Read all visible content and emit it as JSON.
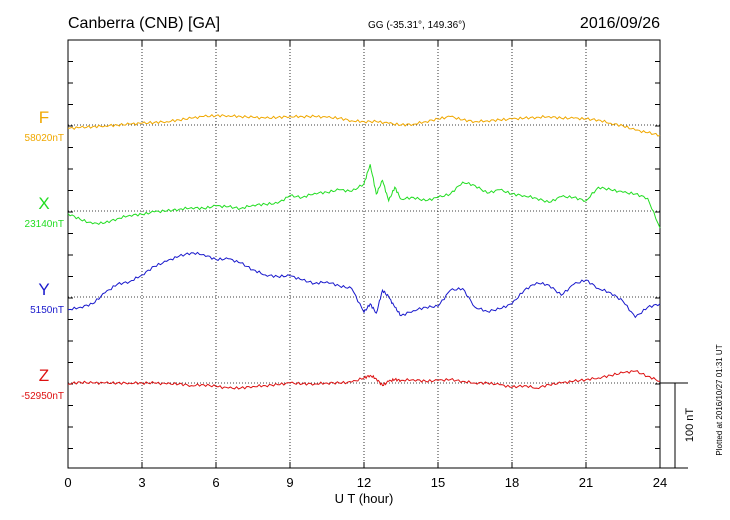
{
  "header": {
    "station": "Canberra (CNB)  [GA]",
    "coords": "GG (-35.31°, 149.36°)",
    "date": "2016/09/26"
  },
  "xaxis": {
    "label": "U T (hour)",
    "ticks": [
      "0",
      "3",
      "6",
      "9",
      "12",
      "15",
      "18",
      "21",
      "24"
    ]
  },
  "scale_label": "100 nT",
  "footer_note": "Plotted at 2016/10/27 01:31  UT",
  "colors": {
    "F": "#f0a800",
    "X": "#22dd22",
    "Y": "#1a1acc",
    "Z": "#dd1111",
    "grid": "#000000"
  },
  "chart_data": {
    "type": "line",
    "x_range": [
      0,
      24
    ],
    "grid": true,
    "series": [
      {
        "name": "F",
        "baseline_label": "58020nT",
        "baseline": 58020,
        "x": [
          0,
          0.5,
          1,
          1.5,
          2,
          2.5,
          3,
          3.5,
          4,
          4.5,
          5,
          5.5,
          6,
          6.5,
          7,
          7.5,
          8,
          8.5,
          9,
          9.5,
          10,
          10.5,
          11,
          11.5,
          12,
          12.5,
          13,
          13.5,
          14,
          14.5,
          15,
          15.5,
          16,
          16.5,
          17,
          17.5,
          18,
          18.5,
          19,
          19.5,
          20,
          20.5,
          21,
          21.5,
          22,
          22.5,
          23,
          23.5,
          24
        ],
        "y": [
          58016,
          58017,
          58018,
          58019,
          58020,
          58021,
          58022,
          58023,
          58024,
          58026,
          58028,
          58030,
          58031,
          58031,
          58030,
          58029,
          58028,
          58029,
          58030,
          58030,
          58030,
          58029,
          58028,
          58025,
          58024,
          58024,
          58022,
          58020,
          58021,
          58024,
          58027,
          58030,
          58026,
          58024,
          58025,
          58026,
          58027,
          58028,
          58029,
          58030,
          58028,
          58028,
          58027,
          58026,
          58022,
          58019,
          58014,
          58011,
          58008
        ]
      },
      {
        "name": "X",
        "baseline_label": "23140nT",
        "baseline": 23140,
        "x": [
          0,
          0.5,
          1,
          1.5,
          2,
          2.5,
          3,
          3.5,
          4,
          4.5,
          5,
          5.5,
          6,
          6.5,
          7,
          7.5,
          8,
          8.5,
          9,
          9.5,
          10,
          10.5,
          11,
          11.5,
          12,
          12.25,
          12.5,
          12.75,
          13,
          13.25,
          13.5,
          14,
          14.5,
          15,
          15.5,
          16,
          16.5,
          17,
          17.5,
          18,
          18.5,
          19,
          19.5,
          20,
          20.5,
          21,
          21.5,
          22,
          22.5,
          23,
          23.5,
          24
        ],
        "y": [
          23137,
          23130,
          23125,
          23126,
          23131,
          23135,
          23136,
          23139,
          23140,
          23142,
          23144,
          23143,
          23146,
          23145,
          23143,
          23147,
          23148,
          23149,
          23158,
          23156,
          23161,
          23162,
          23165,
          23163,
          23172,
          23195,
          23160,
          23176,
          23152,
          23168,
          23154,
          23156,
          23152,
          23156,
          23160,
          23174,
          23170,
          23161,
          23165,
          23160,
          23158,
          23155,
          23150,
          23157,
          23156,
          23152,
          23168,
          23165,
          23162,
          23160,
          23155,
          23120
        ]
      },
      {
        "name": "Y",
        "baseline_label": "5150nT",
        "baseline": 5150,
        "x": [
          0,
          0.5,
          1,
          1.5,
          2,
          2.5,
          3,
          3.5,
          4,
          4.5,
          5,
          5.5,
          6,
          6.5,
          7,
          7.5,
          8,
          8.5,
          9,
          9.5,
          10,
          10.5,
          11,
          11.5,
          12,
          12.25,
          12.5,
          12.75,
          13,
          13.25,
          13.5,
          14,
          14.5,
          15,
          15.5,
          16,
          16.5,
          17,
          17.5,
          18,
          18.5,
          19,
          19.5,
          20,
          20.5,
          21,
          21.5,
          22,
          22.5,
          23,
          23.5,
          24
        ],
        "y": [
          5135,
          5138,
          5142,
          5155,
          5165,
          5168,
          5176,
          5186,
          5192,
          5198,
          5202,
          5200,
          5194,
          5195,
          5190,
          5182,
          5176,
          5174,
          5175,
          5170,
          5166,
          5168,
          5163,
          5160,
          5132,
          5142,
          5131,
          5158,
          5150,
          5138,
          5128,
          5134,
          5138,
          5139,
          5158,
          5160,
          5138,
          5133,
          5136,
          5142,
          5158,
          5167,
          5164,
          5152,
          5165,
          5170,
          5160,
          5155,
          5145,
          5126,
          5138,
          5142
        ]
      },
      {
        "name": "Z",
        "baseline_label": "-52950nT",
        "baseline": -52950,
        "x": [
          0,
          0.5,
          1,
          1.5,
          2,
          2.5,
          3,
          3.5,
          4,
          4.5,
          5,
          5.5,
          6,
          6.5,
          7,
          7.5,
          8,
          8.5,
          9,
          9.5,
          10,
          10.5,
          11,
          11.5,
          12,
          12.25,
          12.5,
          12.75,
          13,
          13.25,
          13.5,
          14,
          14.5,
          15,
          15.5,
          16,
          16.5,
          17,
          17.5,
          18,
          18.5,
          19,
          19.5,
          20,
          20.5,
          21,
          21.5,
          22,
          22.5,
          23,
          23.5,
          24
        ],
        "y": [
          -52951,
          -52949,
          -52950,
          -52950,
          -52950,
          -52950,
          -52950,
          -52950,
          -52951,
          -52951,
          -52953,
          -52952,
          -52954,
          -52956,
          -52956,
          -52954,
          -52953,
          -52952,
          -52950,
          -52951,
          -52951,
          -52950,
          -52950,
          -52949,
          -52944,
          -52941,
          -52945,
          -52953,
          -52948,
          -52946,
          -52947,
          -52946,
          -52948,
          -52947,
          -52946,
          -52948,
          -52950,
          -52950,
          -52952,
          -52955,
          -52953,
          -52956,
          -52952,
          -52950,
          -52948,
          -52946,
          -52944,
          -52941,
          -52938,
          -52936,
          -52942,
          -52948
        ]
      }
    ]
  }
}
